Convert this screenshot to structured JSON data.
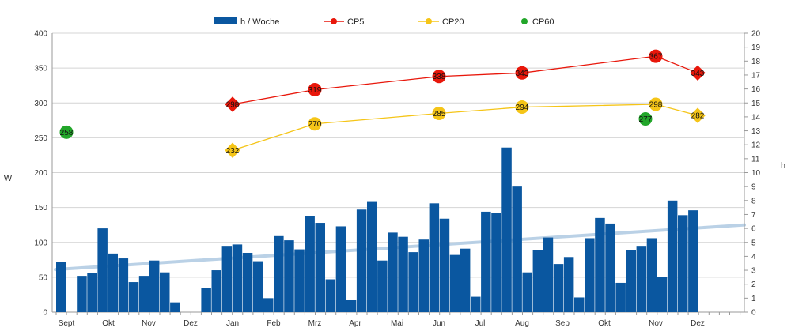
{
  "chart_data": {
    "type": "bar",
    "y_left": {
      "label": "W",
      "range": [
        0,
        400
      ],
      "ticks": [
        "0",
        "50",
        "100",
        "150",
        "200",
        "250",
        "300",
        "350",
        "400"
      ]
    },
    "y_right": {
      "label": "h",
      "range": [
        0,
        20
      ],
      "ticks": [
        "0",
        "1",
        "2",
        "3",
        "4",
        "5",
        "6",
        "7",
        "8",
        "9",
        "10",
        "11",
        "12",
        "13",
        "14",
        "15",
        "16",
        "17",
        "18",
        "19",
        "20"
      ]
    },
    "x_tick_labels": [
      "Sept",
      "Okt",
      "Nov",
      "Dez",
      "Jan",
      "Feb",
      "Mrz",
      "Apr",
      "Mai",
      "Jun",
      "Jul",
      "Aug",
      "Sep",
      "Okt",
      "Nov",
      "Dez"
    ],
    "grid": true,
    "legend_position": "top",
    "legend": [
      {
        "name": "h / Woche",
        "color": "#0a57a0",
        "kind": "bar"
      },
      {
        "name": "CP5",
        "color": "#e8170b",
        "kind": "line"
      },
      {
        "name": "CP20",
        "color": "#f5c518",
        "kind": "line"
      },
      {
        "name": "CP60",
        "color": "#22a62a",
        "kind": "dot"
      }
    ],
    "series": [
      {
        "name": "h / Woche",
        "axis": "right",
        "color": "#0a57a0",
        "values": [
          3.6,
          null,
          2.6,
          2.8,
          6.0,
          4.2,
          3.85,
          2.15,
          2.6,
          3.7,
          2.85,
          0.7,
          null,
          null,
          1.75,
          3.0,
          4.75,
          4.85,
          4.25,
          3.65,
          1.0,
          5.45,
          5.15,
          4.5,
          6.9,
          6.4,
          2.35,
          6.15,
          0.85,
          7.35,
          7.9,
          3.7,
          5.7,
          5.4,
          4.3,
          5.2,
          7.8,
          6.7,
          4.1,
          4.55,
          1.1,
          7.2,
          7.1,
          11.8,
          9.0,
          2.85,
          4.45,
          5.35,
          3.45,
          3.95,
          1.05,
          5.3,
          6.75,
          6.35,
          2.1,
          4.45,
          4.75,
          5.3,
          2.5,
          8.0,
          6.95,
          7.3
        ]
      },
      {
        "name": "CP5",
        "axis": "left",
        "color": "#e8170b",
        "points": [
          {
            "x": "Jan",
            "y": 298,
            "label": "298",
            "marker": "diamond"
          },
          {
            "x": "Mrz",
            "y": 319,
            "label": "319",
            "marker": "circle"
          },
          {
            "x": "Jun",
            "y": 338,
            "label": "338",
            "marker": "circle"
          },
          {
            "x": "Aug",
            "y": 343,
            "label": "343",
            "marker": "circle"
          },
          {
            "x": "Nov",
            "y": 367,
            "label": "367",
            "marker": "circle"
          },
          {
            "x": "Dez",
            "y": 343,
            "label": "343",
            "marker": "diamond"
          }
        ]
      },
      {
        "name": "CP20",
        "axis": "left",
        "color": "#f5c518",
        "points": [
          {
            "x": "Jan",
            "y": 232,
            "label": "232",
            "marker": "diamond"
          },
          {
            "x": "Mrz",
            "y": 270,
            "label": "270",
            "marker": "circle"
          },
          {
            "x": "Jun",
            "y": 285,
            "label": "285",
            "marker": "circle"
          },
          {
            "x": "Aug",
            "y": 294,
            "label": "294",
            "marker": "circle"
          },
          {
            "x": "Nov",
            "y": 298,
            "label": "298",
            "marker": "circle"
          },
          {
            "x": "Dez",
            "y": 282,
            "label": "282",
            "marker": "diamond"
          }
        ]
      },
      {
        "name": "CP60",
        "axis": "left",
        "color": "#22a62a",
        "points": [
          {
            "x": "Sept",
            "y": 258,
            "label": "258",
            "marker": "circle"
          },
          {
            "x": "Nov",
            "y": 277,
            "label": "277",
            "marker": "circle"
          }
        ]
      }
    ],
    "trend": {
      "name": "trend",
      "axis": "left",
      "color": "#b3cde4",
      "y_start": 61,
      "y_end": 125
    }
  }
}
